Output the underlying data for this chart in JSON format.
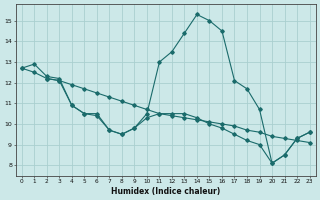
{
  "xlabel": "Humidex (Indice chaleur)",
  "xlim": [
    -0.5,
    23.5
  ],
  "ylim": [
    7.5,
    15.8
  ],
  "yticks": [
    8,
    9,
    10,
    11,
    12,
    13,
    14,
    15
  ],
  "xticks": [
    0,
    1,
    2,
    3,
    4,
    5,
    6,
    7,
    8,
    9,
    10,
    11,
    12,
    13,
    14,
    15,
    16,
    17,
    18,
    19,
    20,
    21,
    22,
    23
  ],
  "bg_color": "#cce8e8",
  "line_color": "#1a6b6b",
  "grid_color": "#aacfcf",
  "lines": [
    {
      "x": [
        0,
        1,
        2,
        3,
        4,
        5,
        6,
        7,
        8,
        9,
        10,
        11,
        12,
        13,
        14,
        15,
        16,
        17,
        18,
        19,
        20,
        21,
        22,
        23
      ],
      "y": [
        12.7,
        12.9,
        12.3,
        12.2,
        10.9,
        10.5,
        10.5,
        9.7,
        9.5,
        9.8,
        10.5,
        13.0,
        13.5,
        14.4,
        15.3,
        15.0,
        14.5,
        12.1,
        11.7,
        10.7,
        8.1,
        8.5,
        9.3,
        9.6
      ]
    },
    {
      "x": [
        0,
        1,
        2,
        3,
        4,
        5,
        6,
        7,
        8,
        9,
        10,
        11,
        12,
        13,
        14,
        15,
        16,
        17,
        18,
        19,
        20,
        21,
        22,
        23
      ],
      "y": [
        12.7,
        12.5,
        12.2,
        12.1,
        11.9,
        11.7,
        11.5,
        11.3,
        11.1,
        10.9,
        10.7,
        10.5,
        10.4,
        10.3,
        10.2,
        10.1,
        10.0,
        9.9,
        9.7,
        9.6,
        9.4,
        9.3,
        9.2,
        9.1
      ]
    },
    {
      "x": [
        2,
        3,
        4,
        5,
        6,
        7,
        8,
        9,
        10,
        11,
        12,
        13,
        14,
        15,
        16,
        17,
        18,
        19,
        20,
        21,
        22,
        23
      ],
      "y": [
        12.2,
        12.1,
        10.9,
        10.5,
        10.4,
        9.7,
        9.5,
        9.8,
        10.3,
        10.5,
        10.5,
        10.5,
        10.3,
        10.0,
        9.8,
        9.5,
        9.2,
        9.0,
        8.1,
        8.5,
        9.3,
        9.6
      ]
    }
  ]
}
